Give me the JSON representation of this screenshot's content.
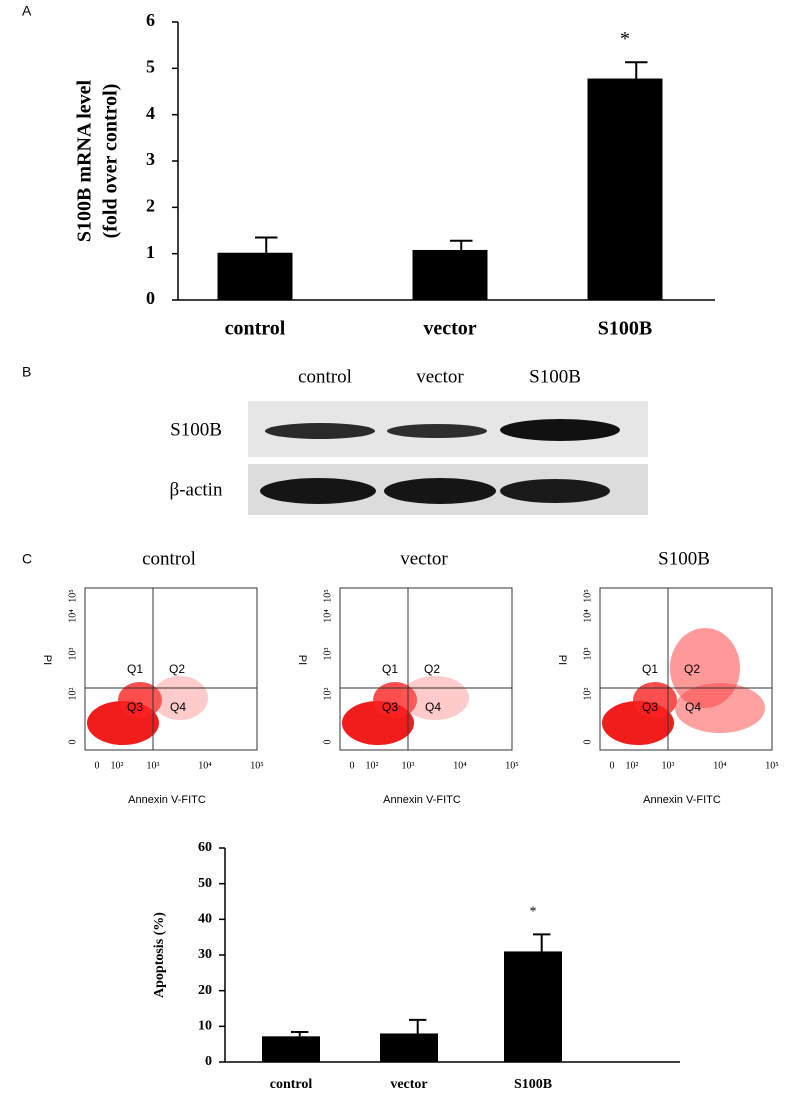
{
  "panels": [
    "A",
    "B",
    "C"
  ],
  "chart_data": [
    {
      "type": "bar",
      "ylabel": [
        "S100B mRNA level",
        "(fold over control)"
      ],
      "categories": [
        "control",
        "vector",
        "S100B"
      ],
      "values": [
        1.02,
        1.08,
        4.78
      ],
      "errors": [
        0.33,
        0.2,
        0.35
      ],
      "color": "#000000",
      "ylim": [
        0,
        6
      ],
      "yticks": [
        0,
        1,
        2,
        3,
        4,
        5,
        6
      ],
      "annotations": [
        {
          "text": "*",
          "x": "S100B"
        }
      ]
    },
    {
      "type": "bar",
      "ylabel": [
        "Apoptosis (%)"
      ],
      "categories": [
        "control",
        "vector",
        "S100B"
      ],
      "values": [
        7.2,
        8.0,
        31.0
      ],
      "errors": [
        1.2,
        3.8,
        4.8
      ],
      "color": "#000000",
      "ylim": [
        0,
        60
      ],
      "yticks": [
        0,
        10,
        20,
        30,
        40,
        50,
        60
      ],
      "annotations": [
        {
          "text": "*",
          "x": "S100B"
        }
      ]
    }
  ],
  "blot": {
    "columns": [
      "control",
      "vector",
      "S100B"
    ],
    "rows": [
      "S100B",
      "β-actin"
    ]
  },
  "flow": {
    "panels": [
      "control",
      "vector",
      "S100B"
    ],
    "xlabel": "Annexin V-FITC",
    "ylabel": "PI",
    "quadrants": [
      "Q1",
      "Q2",
      "Q3",
      "Q4"
    ],
    "ticks": [
      "0",
      "10²",
      "10³",
      "10⁴",
      "10⁵"
    ]
  }
}
